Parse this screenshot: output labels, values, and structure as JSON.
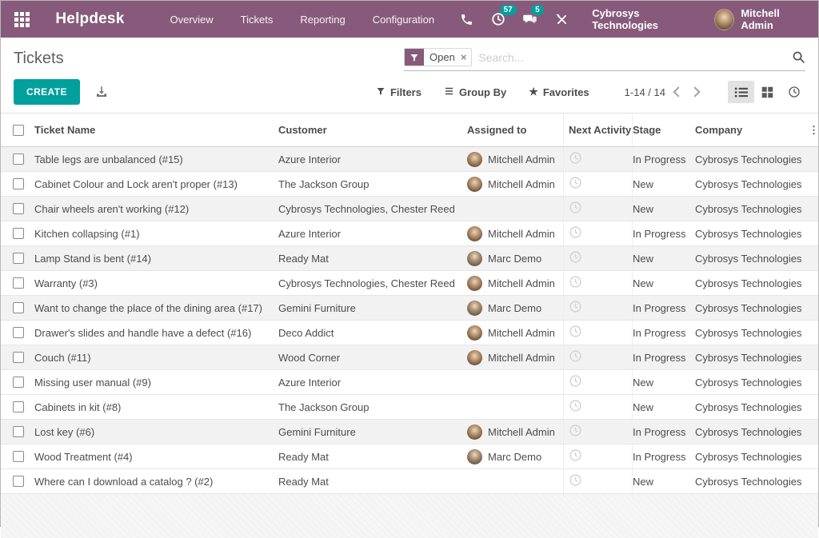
{
  "nav": {
    "brand": "Helpdesk",
    "items": [
      "Overview",
      "Tickets",
      "Reporting",
      "Configuration"
    ],
    "activity_badge": "57",
    "messages_badge": "5",
    "company": "Cybrosys Technologies",
    "user": "Mitchell Admin"
  },
  "header": {
    "title": "Tickets",
    "filter_chip": "Open",
    "search_placeholder": "Search...",
    "create_label": "CREATE",
    "filters_label": "Filters",
    "groupby_label": "Group By",
    "favorites_label": "Favorites",
    "pager": "1-14 / 14"
  },
  "icons": {
    "close": "×",
    "dots": "⋮",
    "star": "★"
  },
  "colors": {
    "nav_purple": "#875A7B",
    "accent_teal": "#00A09D"
  },
  "table": {
    "columns": [
      "Ticket Name",
      "Customer",
      "Assigned to",
      "Next Activity",
      "Stage",
      "Company"
    ],
    "rows": [
      {
        "name": "Table legs are unbalanced (#15)",
        "customer": "Azure Interior",
        "assignee": "Mitchell Admin",
        "avatar": "mitchell",
        "stage": "In Progress",
        "company": "Cybrosys Technologies",
        "shaded": true
      },
      {
        "name": "Cabinet Colour and Lock aren't proper (#13)",
        "customer": "The Jackson Group",
        "assignee": "Mitchell Admin",
        "avatar": "mitchell",
        "stage": "New",
        "company": "Cybrosys Technologies",
        "shaded": false
      },
      {
        "name": "Chair wheels aren't working (#12)",
        "customer": "Cybrosys Technologies, Chester Reed",
        "assignee": "",
        "avatar": "",
        "stage": "New",
        "company": "Cybrosys Technologies",
        "shaded": true
      },
      {
        "name": "Kitchen collapsing (#1)",
        "customer": "Azure Interior",
        "assignee": "Mitchell Admin",
        "avatar": "mitchell",
        "stage": "In Progress",
        "company": "Cybrosys Technologies",
        "shaded": false
      },
      {
        "name": "Lamp Stand is bent (#14)",
        "customer": "Ready Mat",
        "assignee": "Marc Demo",
        "avatar": "marc",
        "stage": "New",
        "company": "Cybrosys Technologies",
        "shaded": true
      },
      {
        "name": "Warranty (#3)",
        "customer": "Cybrosys Technologies, Chester Reed",
        "assignee": "Mitchell Admin",
        "avatar": "mitchell",
        "stage": "New",
        "company": "Cybrosys Technologies",
        "shaded": false
      },
      {
        "name": "Want to change the place of the dining area (#17)",
        "customer": "Gemini Furniture",
        "assignee": "Marc Demo",
        "avatar": "marc",
        "stage": "In Progress",
        "company": "Cybrosys Technologies",
        "shaded": true
      },
      {
        "name": "Drawer's slides and handle have a defect (#16)",
        "customer": "Deco Addict",
        "assignee": "Mitchell Admin",
        "avatar": "mitchell",
        "stage": "In Progress",
        "company": "Cybrosys Technologies",
        "shaded": false
      },
      {
        "name": "Couch (#11)",
        "customer": "Wood Corner",
        "assignee": "Mitchell Admin",
        "avatar": "mitchell",
        "stage": "In Progress",
        "company": "Cybrosys Technologies",
        "shaded": true
      },
      {
        "name": "Missing user manual (#9)",
        "customer": "Azure Interior",
        "assignee": "",
        "avatar": "",
        "stage": "New",
        "company": "Cybrosys Technologies",
        "shaded": false
      },
      {
        "name": "Cabinets in kit (#8)",
        "customer": "The Jackson Group",
        "assignee": "",
        "avatar": "",
        "stage": "New",
        "company": "Cybrosys Technologies",
        "shaded": false
      },
      {
        "name": "Lost key (#6)",
        "customer": "Gemini Furniture",
        "assignee": "Mitchell Admin",
        "avatar": "mitchell",
        "stage": "In Progress",
        "company": "Cybrosys Technologies",
        "shaded": true
      },
      {
        "name": "Wood Treatment (#4)",
        "customer": "Ready Mat",
        "assignee": "Marc Demo",
        "avatar": "marc",
        "stage": "In Progress",
        "company": "Cybrosys Technologies",
        "shaded": false
      },
      {
        "name": "Where can I download a catalog ? (#2)",
        "customer": "Ready Mat",
        "assignee": "",
        "avatar": "",
        "stage": "New",
        "company": "Cybrosys Technologies",
        "shaded": false
      }
    ]
  }
}
